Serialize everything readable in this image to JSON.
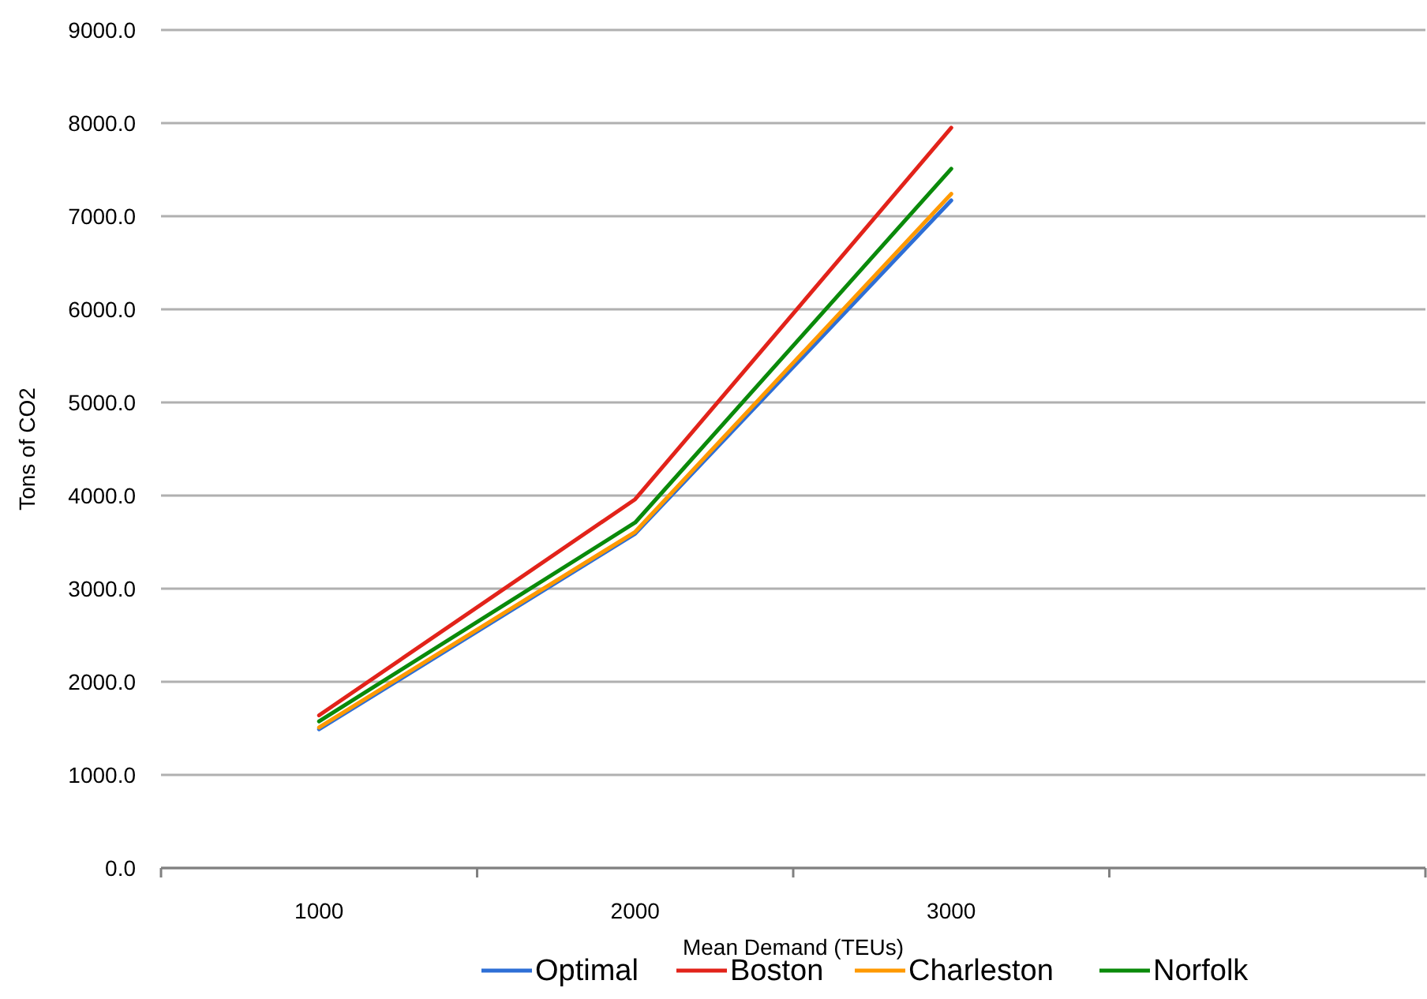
{
  "chart_data": {
    "type": "line",
    "xlabel": "Mean Demand (TEUs)",
    "ylabel": "Tons of CO2",
    "categories": [
      "1000",
      "2000",
      "3000",
      null
    ],
    "series": [
      {
        "name": "Optimal",
        "color": "#2e6fd6",
        "values": [
          1490,
          3590,
          7170,
          null
        ]
      },
      {
        "name": "Boston",
        "color": "#e2231a",
        "values": [
          1640,
          3960,
          7950,
          null
        ]
      },
      {
        "name": "Charleston",
        "color": "#ff9900",
        "values": [
          1510,
          3610,
          7240,
          null
        ]
      },
      {
        "name": "Norfolk",
        "color": "#0a8a0a",
        "values": [
          1575,
          3710,
          7510,
          null
        ]
      }
    ],
    "ylim": [
      0,
      9000
    ],
    "yticks": [
      {
        "value": 0,
        "label": "0.0"
      },
      {
        "value": 1000,
        "label": "1000.0"
      },
      {
        "value": 2000,
        "label": "2000.0"
      },
      {
        "value": 3000,
        "label": "3000.0"
      },
      {
        "value": 4000,
        "label": "4000.0"
      },
      {
        "value": 5000,
        "label": "5000.0"
      },
      {
        "value": 6000,
        "label": "6000.0"
      },
      {
        "value": 7000,
        "label": "7000.0"
      },
      {
        "value": 8000,
        "label": "8000.0"
      },
      {
        "value": 9000,
        "label": "9000.0"
      }
    ],
    "grid": "y",
    "legend": "bottom",
    "marker": "none",
    "line_style": "solid"
  }
}
